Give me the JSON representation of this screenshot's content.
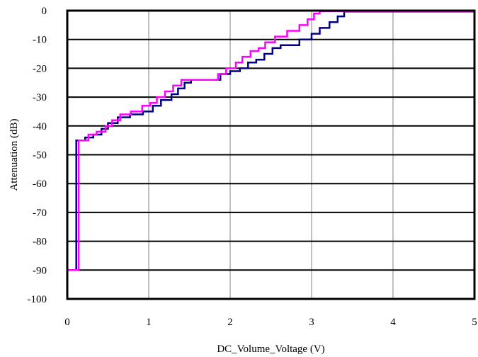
{
  "chart_data": {
    "type": "line",
    "xlabel": "DC_Volume_Voltage (V)",
    "ylabel": "Attenuation (dB)",
    "xlim": [
      0,
      5
    ],
    "ylim": [
      -100,
      0
    ],
    "x_ticks": [
      0,
      1,
      2,
      3,
      4,
      5
    ],
    "y_ticks": [
      0,
      -10,
      -20,
      -30,
      -40,
      -50,
      -60,
      -70,
      -80,
      -90,
      -100
    ],
    "grid": {
      "x": true,
      "y": true
    },
    "series": [
      {
        "color": "#000080",
        "step": true,
        "points": [
          [
            0.0,
            -90
          ],
          [
            0.11,
            -90
          ],
          [
            0.11,
            -45
          ],
          [
            0.22,
            -45
          ],
          [
            0.22,
            -44
          ],
          [
            0.32,
            -44
          ],
          [
            0.32,
            -43
          ],
          [
            0.42,
            -43
          ],
          [
            0.42,
            -41
          ],
          [
            0.5,
            -41
          ],
          [
            0.5,
            -39
          ],
          [
            0.62,
            -39
          ],
          [
            0.62,
            -37
          ],
          [
            0.77,
            -37
          ],
          [
            0.77,
            -36
          ],
          [
            0.93,
            -36
          ],
          [
            0.93,
            -35
          ],
          [
            1.05,
            -35
          ],
          [
            1.05,
            -33
          ],
          [
            1.15,
            -33
          ],
          [
            1.15,
            -31
          ],
          [
            1.28,
            -31
          ],
          [
            1.28,
            -29
          ],
          [
            1.36,
            -29
          ],
          [
            1.36,
            -27
          ],
          [
            1.44,
            -27
          ],
          [
            1.44,
            -25
          ],
          [
            1.52,
            -25
          ],
          [
            1.52,
            -24
          ],
          [
            1.88,
            -24
          ],
          [
            1.88,
            -22
          ],
          [
            2.0,
            -22
          ],
          [
            2.0,
            -21
          ],
          [
            2.12,
            -21
          ],
          [
            2.12,
            -20
          ],
          [
            2.22,
            -20
          ],
          [
            2.22,
            -18
          ],
          [
            2.32,
            -18
          ],
          [
            2.32,
            -17
          ],
          [
            2.42,
            -17
          ],
          [
            2.42,
            -15
          ],
          [
            2.52,
            -15
          ],
          [
            2.52,
            -13
          ],
          [
            2.62,
            -13
          ],
          [
            2.62,
            -12
          ],
          [
            2.85,
            -12
          ],
          [
            2.85,
            -10
          ],
          [
            3.0,
            -10
          ],
          [
            3.0,
            -8
          ],
          [
            3.1,
            -8
          ],
          [
            3.1,
            -6
          ],
          [
            3.22,
            -6
          ],
          [
            3.22,
            -4
          ],
          [
            3.32,
            -4
          ],
          [
            3.32,
            -2
          ],
          [
            3.4,
            -2
          ],
          [
            3.4,
            -0.3
          ],
          [
            5.0,
            -0.3
          ]
        ]
      },
      {
        "color": "#FF00FF",
        "step": true,
        "points": [
          [
            0.0,
            -90
          ],
          [
            0.14,
            -90
          ],
          [
            0.14,
            -45
          ],
          [
            0.26,
            -45
          ],
          [
            0.26,
            -43
          ],
          [
            0.36,
            -43
          ],
          [
            0.36,
            -42
          ],
          [
            0.47,
            -42
          ],
          [
            0.47,
            -40
          ],
          [
            0.55,
            -40
          ],
          [
            0.55,
            -38
          ],
          [
            0.65,
            -38
          ],
          [
            0.65,
            -36
          ],
          [
            0.78,
            -36
          ],
          [
            0.78,
            -35
          ],
          [
            0.92,
            -35
          ],
          [
            0.92,
            -33
          ],
          [
            1.02,
            -33
          ],
          [
            1.02,
            -32
          ],
          [
            1.1,
            -32
          ],
          [
            1.1,
            -30
          ],
          [
            1.2,
            -30
          ],
          [
            1.2,
            -28
          ],
          [
            1.3,
            -28
          ],
          [
            1.3,
            -26
          ],
          [
            1.4,
            -26
          ],
          [
            1.4,
            -24
          ],
          [
            1.85,
            -24
          ],
          [
            1.85,
            -22
          ],
          [
            1.95,
            -22
          ],
          [
            1.95,
            -20
          ],
          [
            2.07,
            -20
          ],
          [
            2.07,
            -18
          ],
          [
            2.15,
            -18
          ],
          [
            2.15,
            -16
          ],
          [
            2.25,
            -16
          ],
          [
            2.25,
            -14
          ],
          [
            2.35,
            -14
          ],
          [
            2.35,
            -13
          ],
          [
            2.43,
            -13
          ],
          [
            2.43,
            -11
          ],
          [
            2.55,
            -11
          ],
          [
            2.55,
            -9
          ],
          [
            2.7,
            -9
          ],
          [
            2.7,
            -7
          ],
          [
            2.85,
            -7
          ],
          [
            2.85,
            -5
          ],
          [
            2.95,
            -5
          ],
          [
            2.95,
            -3
          ],
          [
            3.03,
            -3
          ],
          [
            3.03,
            -1
          ],
          [
            3.1,
            -1
          ],
          [
            3.1,
            -0.2
          ],
          [
            5.0,
            -0.2
          ]
        ]
      }
    ]
  }
}
